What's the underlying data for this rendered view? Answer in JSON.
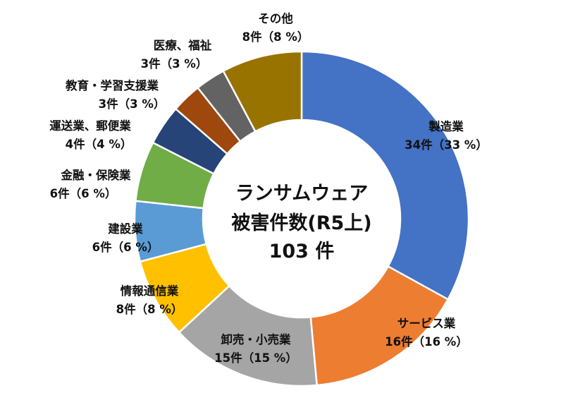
{
  "chart_data": {
    "type": "pie",
    "donut": true,
    "center_text": [
      "ランサムウェア",
      "被害件数(R5上)",
      "103 件"
    ],
    "slices": [
      {
        "category": "製造業",
        "value": 34,
        "percent": 33,
        "label_value": "34件（33 %）",
        "color": "#4472C4"
      },
      {
        "category": "サービス業",
        "value": 16,
        "percent": 16,
        "label_value": "16件（16 %）",
        "color": "#ED7D31"
      },
      {
        "category": "卸売・小売業",
        "value": 15,
        "percent": 15,
        "label_value": "15件（15 %）",
        "color": "#A5A5A5"
      },
      {
        "category": "情報通信業",
        "value": 8,
        "percent": 8,
        "label_value": "8件（8 %）",
        "color": "#FFC000"
      },
      {
        "category": "建設業",
        "value": 6,
        "percent": 6,
        "label_value": "6件（6 %）",
        "color": "#5B9BD5"
      },
      {
        "category": "金融・保険業",
        "value": 6,
        "percent": 6,
        "label_value": "6件（6 %）",
        "color": "#70AD47"
      },
      {
        "category": "運送業、郵便業",
        "value": 4,
        "percent": 4,
        "label_value": "4件（4 %）",
        "color": "#264478"
      },
      {
        "category": "教育・学習支援業",
        "value": 3,
        "percent": 3,
        "label_value": "3件（3 %）",
        "color": "#9E480E"
      },
      {
        "category": "医療、福祉",
        "value": 3,
        "percent": 3,
        "label_value": "3件（3 %）",
        "color": "#636363"
      },
      {
        "category": "その他",
        "value": 8,
        "percent": 8,
        "label_value": "8件（8 %）",
        "color": "#997300"
      }
    ]
  }
}
